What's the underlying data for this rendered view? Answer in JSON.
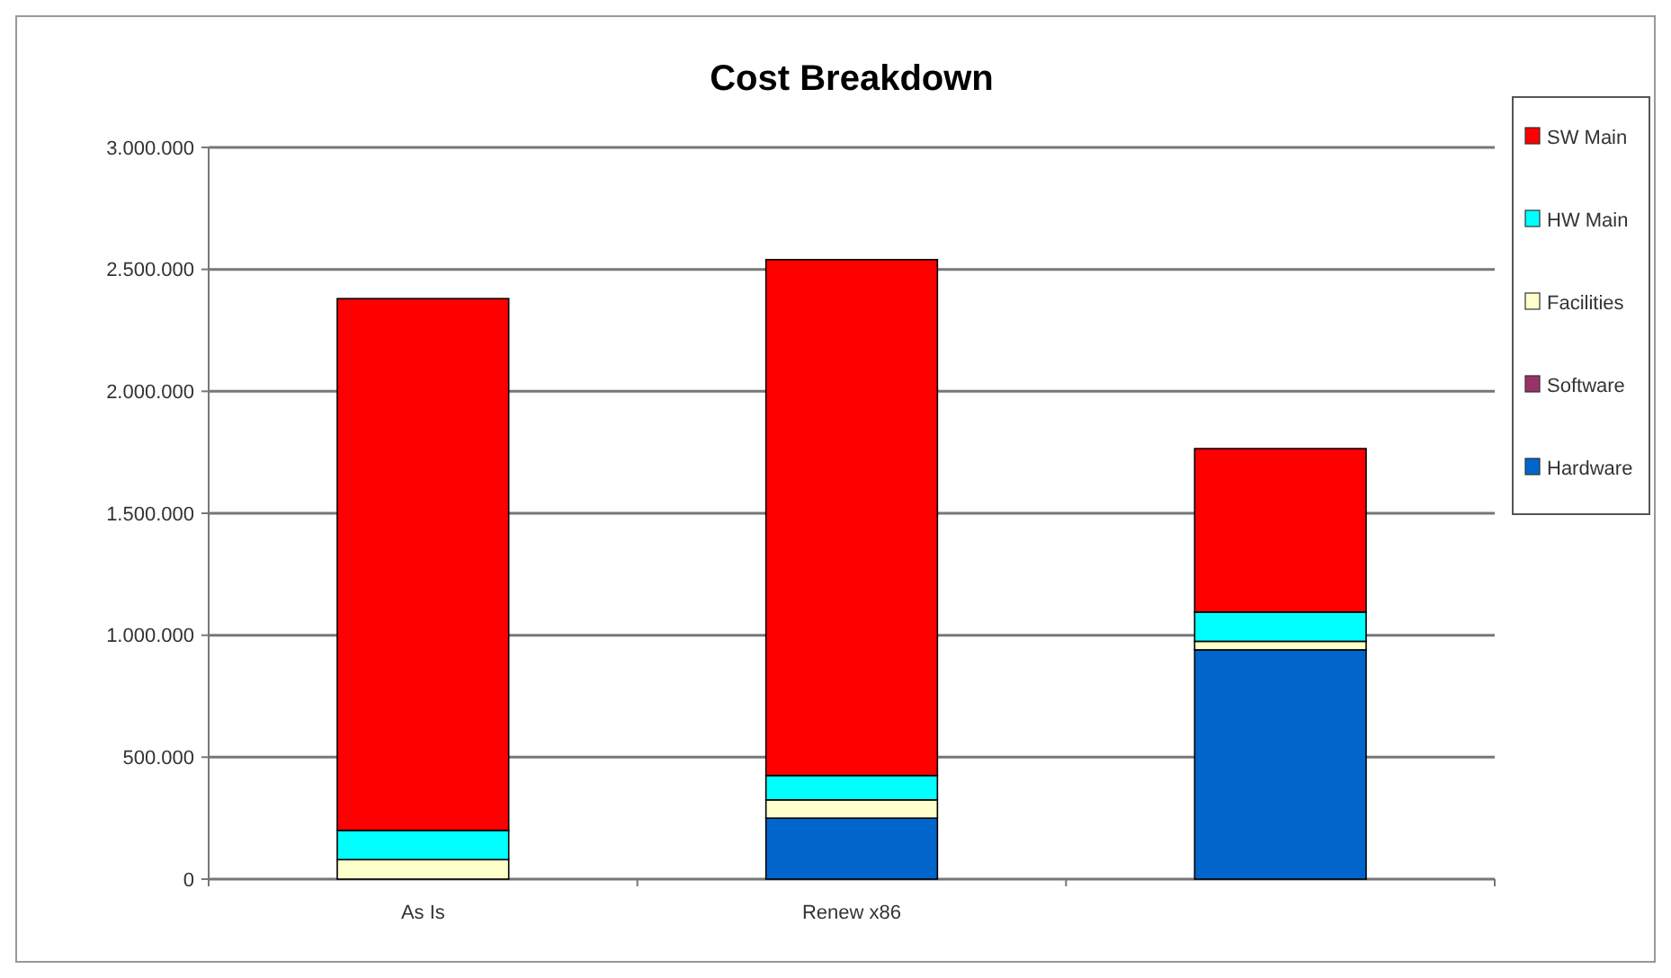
{
  "chart_data": {
    "type": "bar",
    "title": "Cost Breakdown",
    "categories": [
      "As Is",
      "Renew x86",
      null
    ],
    "stacked": true,
    "series": [
      {
        "name": "Hardware",
        "color": "#0066cc",
        "values": [
          0,
          250000,
          940000
        ]
      },
      {
        "name": "Software",
        "color": "#993366",
        "values": [
          0,
          0,
          0
        ]
      },
      {
        "name": "Facilities",
        "color": "#ffffcc",
        "values": [
          80000,
          75000,
          35000
        ]
      },
      {
        "name": "HW Main",
        "color": "#00ffff",
        "values": [
          120000,
          100000,
          120000
        ]
      },
      {
        "name": "SW Main",
        "color": "#ff0000",
        "values": [
          2180000,
          2115000,
          670000
        ]
      }
    ],
    "ylim": [
      0,
      3000000
    ],
    "yticks": [
      {
        "value": 0,
        "label": "0"
      },
      {
        "value": 500000,
        "label": "500.000"
      },
      {
        "value": 1000000,
        "label": "1.000.000"
      },
      {
        "value": 1500000,
        "label": "1.500.000"
      },
      {
        "value": 2000000,
        "label": "2.000.000"
      },
      {
        "value": 2500000,
        "label": "2.500.000"
      },
      {
        "value": 3000000,
        "label": "3.000.000"
      }
    ],
    "grid": "y",
    "legend": "right"
  }
}
